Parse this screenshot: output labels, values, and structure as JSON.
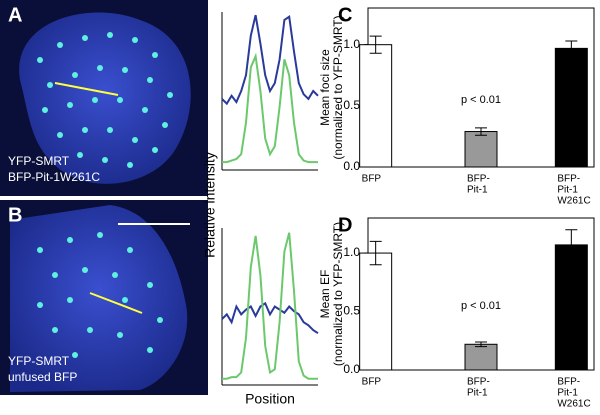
{
  "images": [
    {
      "label": "A",
      "caption": [
        "YFP-SMRT",
        "BFP-Pit-1W261C"
      ]
    },
    {
      "label": "B",
      "caption": [
        "YFP-SMRT",
        "unfused BFP"
      ]
    }
  ],
  "profile_axes": {
    "xlabel": "Position",
    "ylabel": "Relative intensity"
  },
  "chart_data": [
    {
      "type": "line",
      "xlim": [
        0,
        20
      ],
      "ylim": [
        0,
        1
      ],
      "x": [
        0,
        1,
        2,
        3,
        4,
        5,
        6,
        7,
        8,
        9,
        10,
        11,
        12,
        13,
        14,
        15,
        16,
        17,
        18,
        19,
        20
      ],
      "series": [
        {
          "color": "#2a3a9a",
          "values": [
            0.45,
            0.42,
            0.47,
            0.43,
            0.5,
            0.6,
            0.85,
            0.98,
            0.8,
            0.6,
            0.5,
            0.55,
            0.7,
            0.95,
            0.97,
            0.75,
            0.55,
            0.48,
            0.45,
            0.5,
            0.47
          ]
        },
        {
          "color": "#6cc86c",
          "values": [
            0.05,
            0.05,
            0.06,
            0.07,
            0.1,
            0.3,
            0.65,
            0.72,
            0.5,
            0.2,
            0.1,
            0.15,
            0.4,
            0.7,
            0.6,
            0.3,
            0.1,
            0.06,
            0.05,
            0.05,
            0.05
          ]
        }
      ]
    },
    {
      "type": "line",
      "xlim": [
        0,
        20
      ],
      "ylim": [
        0,
        1
      ],
      "x": [
        0,
        1,
        2,
        3,
        4,
        5,
        6,
        7,
        8,
        9,
        10,
        11,
        12,
        13,
        14,
        15,
        16,
        17,
        18,
        19,
        20
      ],
      "series": [
        {
          "color": "#2a3a9a",
          "values": [
            0.42,
            0.45,
            0.4,
            0.5,
            0.45,
            0.48,
            0.5,
            0.44,
            0.5,
            0.52,
            0.45,
            0.5,
            0.48,
            0.46,
            0.5,
            0.47,
            0.45,
            0.4,
            0.38,
            0.35,
            0.33
          ]
        },
        {
          "color": "#6cc86c",
          "values": [
            0.04,
            0.04,
            0.05,
            0.05,
            0.08,
            0.3,
            0.75,
            0.95,
            0.7,
            0.25,
            0.08,
            0.1,
            0.4,
            0.85,
            0.97,
            0.6,
            0.15,
            0.06,
            0.04,
            0.04,
            0.04
          ]
        }
      ]
    },
    {
      "type": "bar",
      "label": "C",
      "ylabel": [
        "Mean foci size",
        "(normalized to YFP-SMRT)"
      ],
      "annotation": "p < 0.01",
      "categories": [
        [
          "BFP"
        ],
        [
          "BFP-",
          "Pit-1"
        ],
        [
          "BFP-",
          "Pit-1",
          "W261C"
        ]
      ],
      "values": [
        1.0,
        0.29,
        0.97
      ],
      "errors": [
        0.07,
        0.03,
        0.06
      ],
      "colors": [
        "#ffffff",
        "#999999",
        "#000000"
      ],
      "ylim": [
        0,
        1.3
      ],
      "yticks": [
        {
          "value": 0,
          "label": "0.0"
        },
        0.5,
        {
          "value": 1,
          "label": "1.0"
        }
      ]
    },
    {
      "type": "bar",
      "label": "D",
      "ylabel": [
        "Mean EF",
        "(normalized to YFP-SMRT)"
      ],
      "annotation": "p < 0.01",
      "categories": [
        [
          "BFP"
        ],
        [
          "BFP-",
          "Pit-1"
        ],
        [
          "BFP-",
          "Pit-1",
          "W261C"
        ]
      ],
      "values": [
        1.0,
        0.22,
        1.07
      ],
      "errors": [
        0.1,
        0.02,
        0.13
      ],
      "colors": [
        "#ffffff",
        "#999999",
        "#000000"
      ],
      "ylim": [
        0,
        1.3
      ],
      "yticks": [
        {
          "value": 0,
          "label": "0.0"
        },
        0.5,
        {
          "value": 1,
          "label": "1.0"
        }
      ]
    }
  ]
}
